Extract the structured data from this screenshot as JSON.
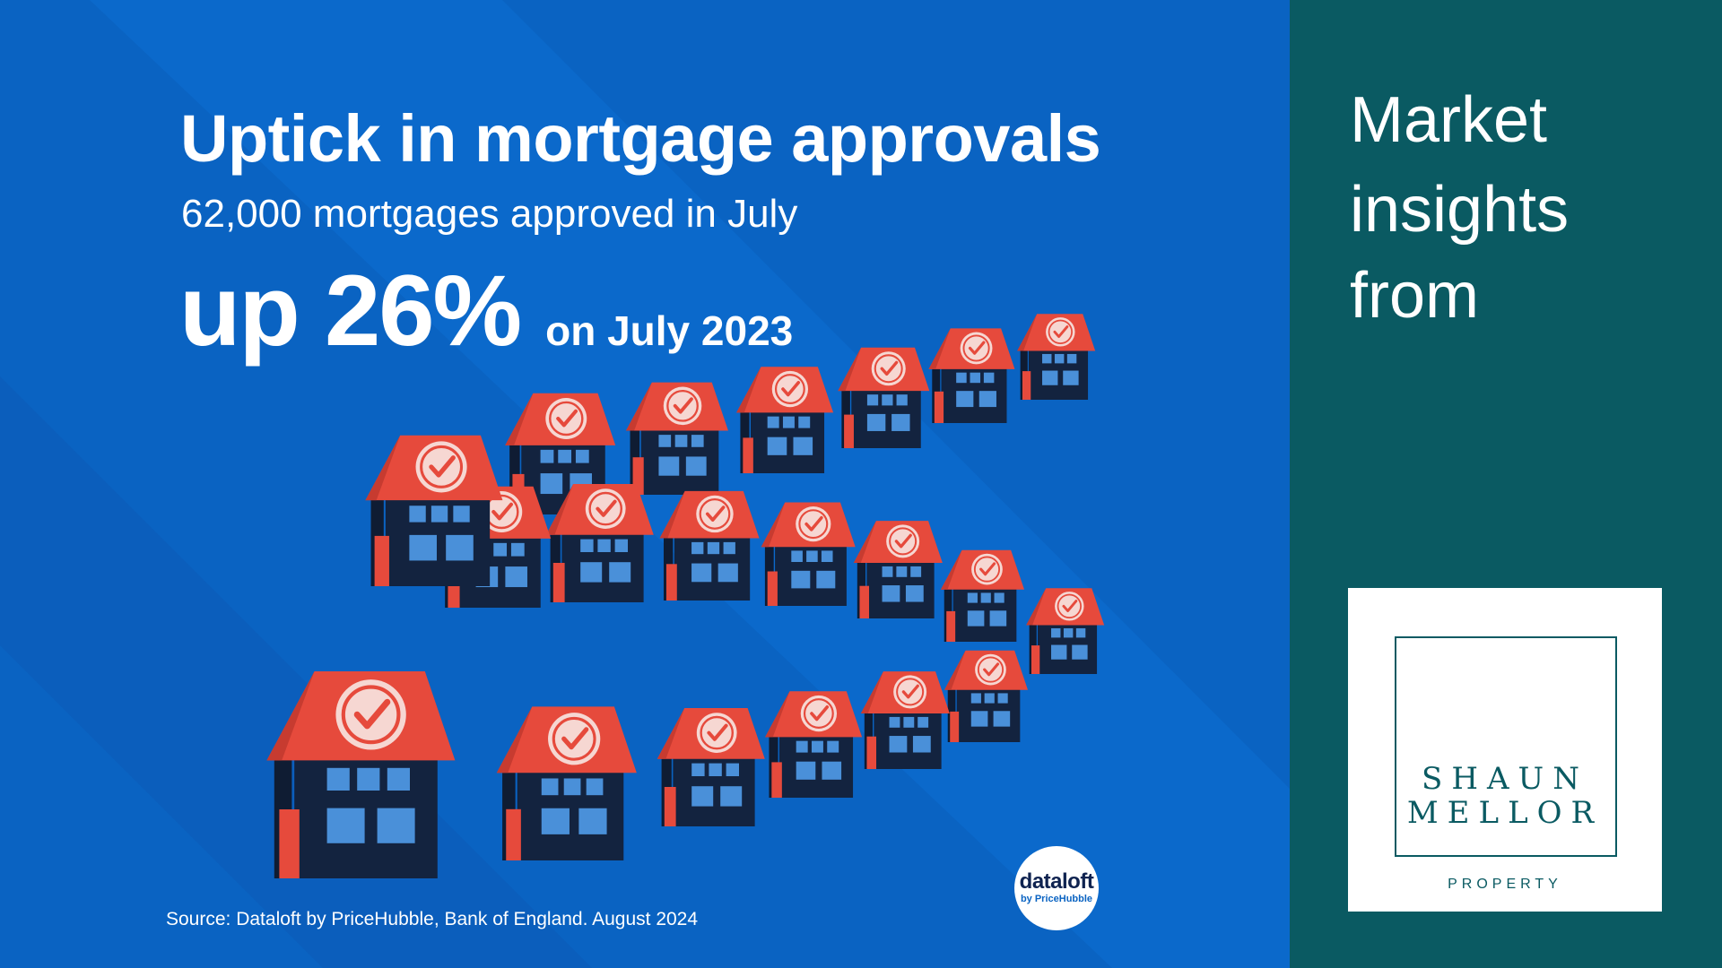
{
  "infographic": {
    "headline": "Uptick in mortgage approvals",
    "subline": "62,000 mortgages approved in July",
    "stat_big": "up 26%",
    "stat_small": "on July 2023",
    "source": "Source: Dataloft by PriceHubble, Bank of England. August 2024",
    "badge": {
      "name": "dataloft",
      "by": "by PriceHubble"
    }
  },
  "sidebar": {
    "lines": [
      "Market",
      "insights",
      "from"
    ],
    "logo": {
      "line1": "SHAUN",
      "line2": "MELLOR",
      "line3": "PROPERTY"
    }
  },
  "colors": {
    "background_blue": "#0a63c2",
    "teal": "#0a5a62",
    "roof_red": "#e64a3c",
    "house_navy": "#13233f",
    "window_blue": "#4a90d9",
    "white": "#ffffff"
  },
  "icons": [
    "house-icon",
    "checkmark-badge-icon"
  ]
}
